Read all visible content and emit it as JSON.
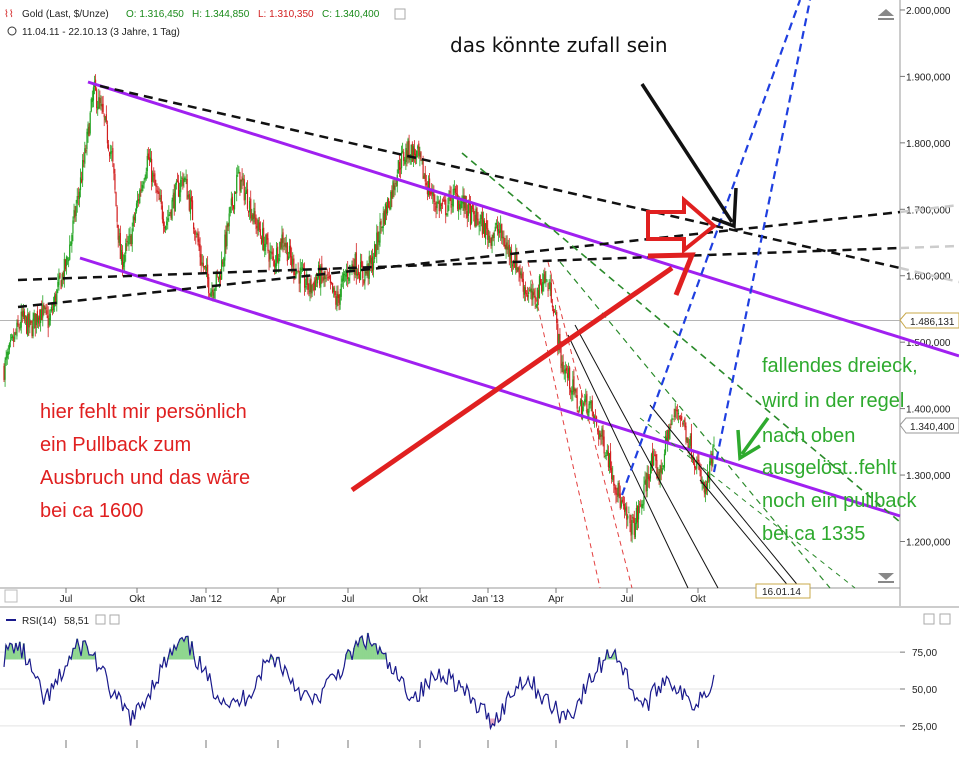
{
  "header": {
    "instrument": "Gold (Last, $/Unze)",
    "open": "O: 1.316,450",
    "high": "H: 1.344,850",
    "low": "L: 1.310,350",
    "close": "C: 1.340,400",
    "range": "11.04.11 - 22.10.13 (3 Jahre, 1 Tag)"
  },
  "chart_data": [
    {
      "type": "candlestick",
      "title": "Gold (Last, $/Unze)",
      "x_ticks": [
        "Jul",
        "Okt",
        "Jan '12",
        "Apr",
        "Jul",
        "Okt",
        "Jan '13",
        "Apr",
        "Jul",
        "Okt"
      ],
      "y_ticks": [
        "2.000,000",
        "1.900,000",
        "1.800,000",
        "1.700,000",
        "1.600,000",
        "1.500,000",
        "1.400,000",
        "1.300,000",
        "1.200,000"
      ],
      "ylim": [
        1130,
        2015
      ],
      "price_markers": [
        "1.486,131",
        "1.340,400"
      ],
      "date_marker": "16.01.14",
      "series": [
        {
          "values": [
            1460,
            1500,
            1535,
            1520,
            1550,
            1530,
            1580,
            1620,
            1700,
            1780,
            1880,
            1840,
            1780,
            1620,
            1650,
            1720,
            1780,
            1720,
            1680,
            1720,
            1750,
            1690,
            1620,
            1580,
            1600,
            1680,
            1750,
            1720,
            1680,
            1650,
            1620,
            1660,
            1620,
            1600,
            1580,
            1600,
            1590,
            1560,
            1600,
            1620,
            1600,
            1620,
            1680,
            1720,
            1770,
            1790,
            1780,
            1740,
            1710,
            1700,
            1720,
            1710,
            1690,
            1680,
            1660,
            1670,
            1640,
            1620,
            1580,
            1560,
            1600,
            1570,
            1470,
            1440,
            1400,
            1410,
            1370,
            1340,
            1290,
            1240,
            1220,
            1260,
            1320,
            1300,
            1370,
            1400,
            1360,
            1320,
            1270,
            1340
          ]
        }
      ]
    },
    {
      "type": "line",
      "title": "RSI(14)",
      "series": [
        {
          "name": "RSI(14)",
          "values": [
            72,
            80,
            74,
            58,
            42,
            50,
            63,
            76,
            80,
            72,
            58,
            45,
            36,
            30,
            42,
            55,
            66,
            76,
            82,
            74,
            60,
            50,
            44,
            38,
            44,
            52,
            66,
            72,
            64,
            54,
            46,
            40,
            50,
            58,
            66,
            76,
            84,
            80,
            70,
            60,
            52,
            45,
            50,
            58,
            62,
            56,
            48,
            40,
            34,
            28,
            38,
            50,
            58,
            52,
            44,
            36,
            32,
            36,
            48,
            60,
            70,
            78,
            62,
            48,
            38,
            46,
            58,
            54,
            44,
            40,
            48,
            58
          ]
        }
      ],
      "current_value": "58,51",
      "y_ticks": [
        "75,00",
        "50,00",
        "25,00"
      ],
      "ylim": [
        10,
        90
      ]
    }
  ],
  "annotations": {
    "top_note": "das könnte zufall sein",
    "red_note": [
      "hier fehlt mir persönlich",
      "ein Pullback zum",
      "Ausbruch und das wäre",
      "bei ca 1600"
    ],
    "green_note": [
      "fallendes dreieck,",
      "wird in der regel",
      "nach oben",
      "ausgelöst..fehlt",
      "noch ein pullback",
      "bei ca 1335"
    ]
  },
  "colors": {
    "channel": "#a020f0",
    "up": "#1fa31f",
    "down": "#d21f1f",
    "rsi": "#1a1a8c",
    "red_note": "#e02020",
    "green_note": "#2eaa2e"
  }
}
